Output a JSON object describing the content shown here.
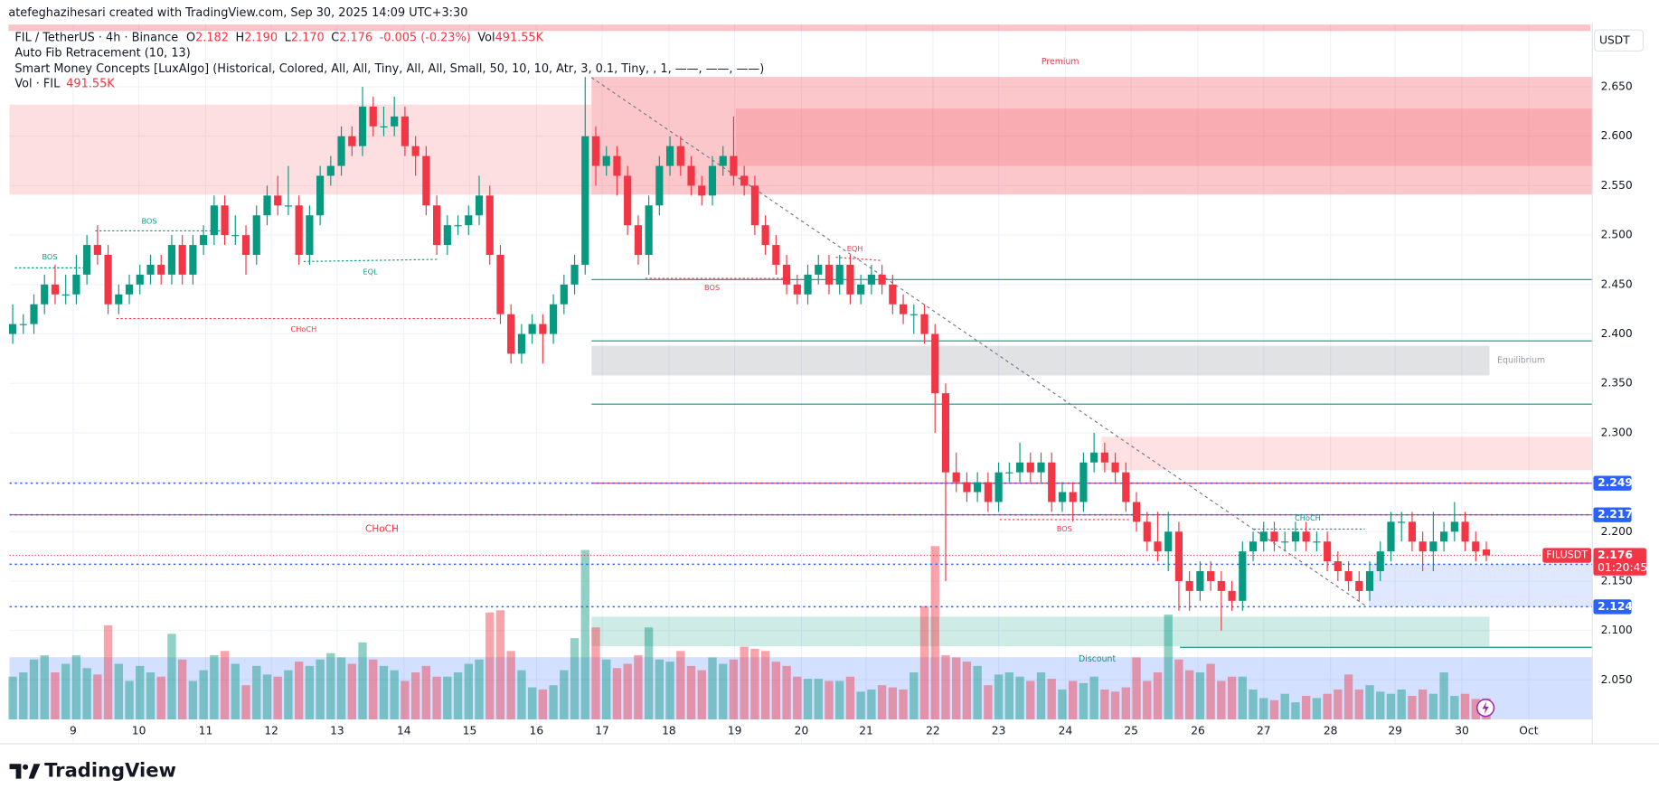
{
  "header": {
    "credit": "atefeghazihesari created with TradingView.com, Sep 30, 2025 14:09 UTC+3:30",
    "symbol": "FIL / TetherUS · 4h · Binance",
    "o_label": "O",
    "o": "2.182",
    "h_label": "H",
    "h": "2.190",
    "l_label": "L",
    "l": "2.170",
    "c_label": "C",
    "c": "2.176",
    "change": "-0.005 (-0.23%)",
    "vol_label": "Vol",
    "vol": "491.55K",
    "indicator_1": "Auto Fib Retracement (10, 13)",
    "indicator_2": "Smart Money Concepts [LuxAlgo] (Historical, Colored, All, All, Tiny, All, All, Small, 50, 10, 10, Atr, 3, 0.1, Tiny, , 1, ——, ——, ——)",
    "indicator_3": "Vol · FIL",
    "indicator_3_value": "491.55K",
    "currency": "USDT",
    "brand": "TradingView"
  },
  "chart_data": {
    "type": "candlestick",
    "up_color": "#089981",
    "down_color": "#f23645",
    "grid": true,
    "xlim": [
      -0.3,
      149
    ],
    "ylim": [
      2.01,
      2.714
    ],
    "volume_lim": [
      0,
      4200
    ],
    "yticks": [
      {
        "value": 2.05,
        "label": "2.050"
      },
      {
        "value": 2.1,
        "label": "2.100"
      },
      {
        "value": 2.15,
        "label": "2.150"
      },
      {
        "value": 2.2,
        "label": "2.200"
      },
      {
        "value": 2.25,
        "label": "2.250"
      },
      {
        "value": 2.3,
        "label": "2.300"
      },
      {
        "value": 2.35,
        "label": "2.350"
      },
      {
        "value": 2.4,
        "label": "2.400"
      },
      {
        "value": 2.45,
        "label": "2.450"
      },
      {
        "value": 2.5,
        "label": "2.500"
      },
      {
        "value": 2.55,
        "label": "2.550"
      },
      {
        "value": 2.6,
        "label": "2.600"
      },
      {
        "value": 2.65,
        "label": "2.650"
      }
    ],
    "xticks": [
      {
        "value": 5.7,
        "label": "9"
      },
      {
        "value": 11.9,
        "label": "10"
      },
      {
        "value": 18.2,
        "label": "11"
      },
      {
        "value": 24.4,
        "label": "12"
      },
      {
        "value": 30.6,
        "label": "13"
      },
      {
        "value": 36.9,
        "label": "14"
      },
      {
        "value": 43.1,
        "label": "15"
      },
      {
        "value": 49.4,
        "label": "16"
      },
      {
        "value": 55.6,
        "label": "17"
      },
      {
        "value": 61.9,
        "label": "18"
      },
      {
        "value": 68.1,
        "label": "19"
      },
      {
        "value": 74.4,
        "label": "20"
      },
      {
        "value": 80.5,
        "label": "21"
      },
      {
        "value": 86.8,
        "label": "22"
      },
      {
        "value": 93.0,
        "label": "23"
      },
      {
        "value": 99.3,
        "label": "24"
      },
      {
        "value": 105.5,
        "label": "25"
      },
      {
        "value": 111.8,
        "label": "26"
      },
      {
        "value": 118.0,
        "label": "27"
      },
      {
        "value": 124.3,
        "label": "28"
      },
      {
        "value": 130.4,
        "label": "29"
      },
      {
        "value": 136.7,
        "label": "30"
      },
      {
        "value": 143.0,
        "label": "Oct"
      }
    ],
    "candles": [
      [
        2.4,
        2.43,
        2.39,
        2.41
      ],
      [
        2.41,
        2.42,
        2.4,
        2.41
      ],
      [
        2.41,
        2.44,
        2.4,
        2.43
      ],
      [
        2.43,
        2.46,
        2.42,
        2.45
      ],
      [
        2.45,
        2.47,
        2.43,
        2.44
      ],
      [
        2.44,
        2.46,
        2.43,
        2.44
      ],
      [
        2.44,
        2.48,
        2.43,
        2.46
      ],
      [
        2.46,
        2.5,
        2.45,
        2.49
      ],
      [
        2.49,
        2.51,
        2.47,
        2.48
      ],
      [
        2.48,
        2.49,
        2.42,
        2.43
      ],
      [
        2.43,
        2.45,
        2.42,
        2.44
      ],
      [
        2.44,
        2.46,
        2.43,
        2.45
      ],
      [
        2.45,
        2.47,
        2.44,
        2.46
      ],
      [
        2.46,
        2.48,
        2.45,
        2.47
      ],
      [
        2.47,
        2.48,
        2.45,
        2.46
      ],
      [
        2.46,
        2.5,
        2.45,
        2.49
      ],
      [
        2.49,
        2.5,
        2.45,
        2.46
      ],
      [
        2.46,
        2.5,
        2.45,
        2.49
      ],
      [
        2.49,
        2.51,
        2.48,
        2.5
      ],
      [
        2.5,
        2.54,
        2.49,
        2.53
      ],
      [
        2.53,
        2.54,
        2.49,
        2.5
      ],
      [
        2.5,
        2.52,
        2.49,
        2.5
      ],
      [
        2.5,
        2.51,
        2.46,
        2.48
      ],
      [
        2.48,
        2.53,
        2.47,
        2.52
      ],
      [
        2.52,
        2.55,
        2.51,
        2.54
      ],
      [
        2.54,
        2.56,
        2.52,
        2.53
      ],
      [
        2.53,
        2.57,
        2.52,
        2.53
      ],
      [
        2.53,
        2.54,
        2.47,
        2.48
      ],
      [
        2.48,
        2.53,
        2.47,
        2.52
      ],
      [
        2.52,
        2.57,
        2.51,
        2.56
      ],
      [
        2.56,
        2.58,
        2.55,
        2.57
      ],
      [
        2.57,
        2.61,
        2.56,
        2.6
      ],
      [
        2.6,
        2.61,
        2.58,
        2.59
      ],
      [
        2.59,
        2.65,
        2.58,
        2.63
      ],
      [
        2.63,
        2.64,
        2.6,
        2.61
      ],
      [
        2.61,
        2.63,
        2.6,
        2.61
      ],
      [
        2.61,
        2.64,
        2.6,
        2.62
      ],
      [
        2.62,
        2.63,
        2.58,
        2.59
      ],
      [
        2.59,
        2.6,
        2.56,
        2.58
      ],
      [
        2.58,
        2.59,
        2.52,
        2.53
      ],
      [
        2.53,
        2.54,
        2.48,
        2.49
      ],
      [
        2.49,
        2.52,
        2.48,
        2.51
      ],
      [
        2.51,
        2.52,
        2.5,
        2.51
      ],
      [
        2.51,
        2.53,
        2.5,
        2.52
      ],
      [
        2.52,
        2.56,
        2.51,
        2.54
      ],
      [
        2.54,
        2.55,
        2.47,
        2.48
      ],
      [
        2.48,
        2.49,
        2.41,
        2.42
      ],
      [
        2.42,
        2.43,
        2.37,
        2.38
      ],
      [
        2.38,
        2.41,
        2.37,
        2.4
      ],
      [
        2.4,
        2.42,
        2.39,
        2.41
      ],
      [
        2.41,
        2.42,
        2.37,
        2.4
      ],
      [
        2.4,
        2.44,
        2.39,
        2.43
      ],
      [
        2.43,
        2.46,
        2.42,
        2.45
      ],
      [
        2.45,
        2.48,
        2.44,
        2.47
      ],
      [
        2.47,
        2.66,
        2.46,
        2.6
      ],
      [
        2.6,
        2.61,
        2.55,
        2.57
      ],
      [
        2.57,
        2.59,
        2.56,
        2.58
      ],
      [
        2.58,
        2.59,
        2.54,
        2.56
      ],
      [
        2.56,
        2.57,
        2.5,
        2.51
      ],
      [
        2.51,
        2.52,
        2.47,
        2.48
      ],
      [
        2.48,
        2.54,
        2.46,
        2.53
      ],
      [
        2.53,
        2.58,
        2.52,
        2.57
      ],
      [
        2.57,
        2.6,
        2.56,
        2.59
      ],
      [
        2.59,
        2.6,
        2.56,
        2.57
      ],
      [
        2.57,
        2.58,
        2.54,
        2.55
      ],
      [
        2.55,
        2.56,
        2.53,
        2.54
      ],
      [
        2.54,
        2.58,
        2.53,
        2.57
      ],
      [
        2.57,
        2.59,
        2.56,
        2.58
      ],
      [
        2.58,
        2.62,
        2.55,
        2.56
      ],
      [
        2.56,
        2.57,
        2.54,
        2.55
      ],
      [
        2.55,
        2.56,
        2.5,
        2.51
      ],
      [
        2.51,
        2.52,
        2.48,
        2.49
      ],
      [
        2.49,
        2.5,
        2.46,
        2.47
      ],
      [
        2.47,
        2.48,
        2.44,
        2.45
      ],
      [
        2.45,
        2.46,
        2.43,
        2.44
      ],
      [
        2.44,
        2.47,
        2.43,
        2.46
      ],
      [
        2.46,
        2.48,
        2.45,
        2.47
      ],
      [
        2.47,
        2.48,
        2.44,
        2.45
      ],
      [
        2.45,
        2.48,
        2.44,
        2.47
      ],
      [
        2.47,
        2.48,
        2.43,
        2.44
      ],
      [
        2.44,
        2.46,
        2.43,
        2.45
      ],
      [
        2.45,
        2.47,
        2.44,
        2.46
      ],
      [
        2.46,
        2.47,
        2.44,
        2.45
      ],
      [
        2.45,
        2.46,
        2.42,
        2.43
      ],
      [
        2.43,
        2.44,
        2.41,
        2.42
      ],
      [
        2.42,
        2.43,
        2.4,
        2.42
      ],
      [
        2.42,
        2.43,
        2.39,
        2.4
      ],
      [
        2.4,
        2.41,
        2.3,
        2.34
      ],
      [
        2.34,
        2.35,
        2.15,
        2.26
      ],
      [
        2.26,
        2.28,
        2.24,
        2.25
      ],
      [
        2.25,
        2.26,
        2.23,
        2.24
      ],
      [
        2.24,
        2.26,
        2.23,
        2.25
      ],
      [
        2.25,
        2.26,
        2.22,
        2.23
      ],
      [
        2.23,
        2.27,
        2.22,
        2.26
      ],
      [
        2.26,
        2.27,
        2.25,
        2.26
      ],
      [
        2.26,
        2.29,
        2.25,
        2.27
      ],
      [
        2.27,
        2.28,
        2.25,
        2.26
      ],
      [
        2.26,
        2.28,
        2.25,
        2.27
      ],
      [
        2.27,
        2.28,
        2.22,
        2.23
      ],
      [
        2.23,
        2.25,
        2.22,
        2.24
      ],
      [
        2.24,
        2.25,
        2.21,
        2.23
      ],
      [
        2.23,
        2.28,
        2.22,
        2.27
      ],
      [
        2.27,
        2.3,
        2.26,
        2.28
      ],
      [
        2.28,
        2.29,
        2.26,
        2.27
      ],
      [
        2.27,
        2.28,
        2.25,
        2.26
      ],
      [
        2.26,
        2.27,
        2.22,
        2.23
      ],
      [
        2.23,
        2.24,
        2.2,
        2.21
      ],
      [
        2.21,
        2.22,
        2.18,
        2.19
      ],
      [
        2.19,
        2.22,
        2.17,
        2.18
      ],
      [
        2.18,
        2.22,
        2.16,
        2.2
      ],
      [
        2.2,
        2.21,
        2.12,
        2.15
      ],
      [
        2.15,
        2.16,
        2.12,
        2.14
      ],
      [
        2.14,
        2.17,
        2.13,
        2.16
      ],
      [
        2.16,
        2.17,
        2.14,
        2.15
      ],
      [
        2.15,
        2.16,
        2.1,
        2.14
      ],
      [
        2.14,
        2.15,
        2.12,
        2.13
      ],
      [
        2.13,
        2.19,
        2.12,
        2.18
      ],
      [
        2.18,
        2.2,
        2.17,
        2.19
      ],
      [
        2.19,
        2.21,
        2.18,
        2.2
      ],
      [
        2.2,
        2.21,
        2.18,
        2.19
      ],
      [
        2.19,
        2.2,
        2.18,
        2.19
      ],
      [
        2.19,
        2.21,
        2.18,
        2.2
      ],
      [
        2.2,
        2.21,
        2.18,
        2.19
      ],
      [
        2.19,
        2.2,
        2.18,
        2.19
      ],
      [
        2.19,
        2.2,
        2.16,
        2.17
      ],
      [
        2.17,
        2.18,
        2.15,
        2.16
      ],
      [
        2.16,
        2.17,
        2.14,
        2.15
      ],
      [
        2.15,
        2.16,
        2.13,
        2.14
      ],
      [
        2.14,
        2.17,
        2.13,
        2.16
      ],
      [
        2.16,
        2.19,
        2.15,
        2.18
      ],
      [
        2.18,
        2.22,
        2.17,
        2.21
      ],
      [
        2.21,
        2.22,
        2.19,
        2.21
      ],
      [
        2.21,
        2.22,
        2.18,
        2.19
      ],
      [
        2.19,
        2.2,
        2.16,
        2.18
      ],
      [
        2.18,
        2.22,
        2.16,
        2.19
      ],
      [
        2.19,
        2.21,
        2.18,
        2.2
      ],
      [
        2.2,
        2.23,
        2.19,
        2.21
      ],
      [
        2.21,
        2.22,
        2.18,
        2.19
      ],
      [
        2.19,
        2.2,
        2.17,
        2.18
      ],
      [
        2.182,
        2.19,
        2.17,
        2.176
      ]
    ],
    "volume": [
      1000,
      1100,
      1400,
      1500,
      1100,
      1300,
      1500,
      1200,
      1050,
      2200,
      1300,
      900,
      1250,
      1100,
      1000,
      2000,
      1400,
      900,
      1150,
      1500,
      1600,
      1300,
      800,
      1250,
      1050,
      1000,
      1150,
      1350,
      1250,
      1400,
      1550,
      1450,
      1300,
      1800,
      1400,
      1250,
      1150,
      900,
      1100,
      1250,
      1000,
      1000,
      1100,
      1300,
      1400,
      2500,
      2550,
      1600,
      1150,
      750,
      700,
      800,
      1150,
      1900,
      3960,
      2150,
      1400,
      1200,
      1300,
      1500,
      2150,
      1400,
      1350,
      1600,
      1250,
      1150,
      1450,
      1300,
      1400,
      1700,
      1650,
      1600,
      1350,
      1250,
      1000,
      950,
      950,
      900,
      900,
      1000,
      650,
      700,
      800,
      750,
      700,
      1100,
      2650,
      4050,
      1500,
      1450,
      1350,
      1250,
      800,
      1050,
      1100,
      1000,
      900,
      1100,
      950,
      700,
      900,
      850,
      1000,
      700,
      650,
      750,
      1450,
      900,
      1100,
      2450,
      1400,
      1150,
      1100,
      1300,
      900,
      1000,
      1000,
      700,
      500,
      450,
      600,
      400,
      550,
      500,
      600,
      700,
      1050,
      700,
      800,
      650,
      600,
      700,
      550,
      700,
      600,
      1100,
      550,
      600,
      480,
      491.55
    ],
    "zones": [
      {
        "label": "Premium",
        "low": 2.541,
        "high": 2.66,
        "from": 54.6,
        "to": 149,
        "color": "rgba(242,54,69,0.28)"
      },
      {
        "low": 2.57,
        "high": 2.628,
        "from": 68.2,
        "to": 149,
        "color": "rgba(242,54,69,0.18)"
      },
      {
        "low": 2.541,
        "high": 2.632,
        "from": -0.3,
        "to": 54.6,
        "color": "rgba(242,54,69,0.16)"
      },
      {
        "label": "Equilibrium",
        "low": 2.358,
        "high": 2.388,
        "from": 54.6,
        "to": 139.3,
        "color": "rgba(120,123,134,0.22)"
      },
      {
        "low": 2.262,
        "high": 2.296,
        "from": 102.7,
        "to": 149,
        "color": "rgba(242,54,69,0.15)"
      },
      {
        "low": 2.124,
        "high": 2.167,
        "from": 127.9,
        "to": 149,
        "color": "rgba(41,98,255,0.15)"
      },
      {
        "low": 2.084,
        "high": 2.114,
        "from": 54.6,
        "to": 139.3,
        "color": "rgba(8,153,129,0.2)"
      },
      {
        "label": "Discount",
        "low": 2.01,
        "high": 2.073,
        "from": -0.3,
        "to": 149,
        "color": "rgba(41,98,255,0.2)"
      }
    ],
    "lines": [
      {
        "price": 2.455,
        "from": 54.6,
        "color": "#089981"
      },
      {
        "price": 2.393,
        "from": 54.6,
        "color": "#089981"
      },
      {
        "price": 2.329,
        "from": 54.6,
        "color": "#089981"
      },
      {
        "price": 2.249,
        "from": 54.6,
        "color": "#f23645"
      },
      {
        "price": 2.217,
        "from": -0.3,
        "color": "#f23645"
      },
      {
        "price": 2.083,
        "from": 110.1,
        "color": "#089981"
      }
    ],
    "levels": [
      {
        "price": 2.249,
        "color": "#2962ff"
      },
      {
        "price": 2.217,
        "color": "#2962ff"
      },
      {
        "price": 2.167,
        "color": "#2962ff"
      },
      {
        "price": 2.124,
        "color": "#2962ff"
      }
    ],
    "last_price": {
      "value": 2.176,
      "symbol": "FILUSDT",
      "countdown": "01:20:45",
      "color": "#f23645"
    },
    "annotations": [
      "BOS",
      "BOS",
      "EQL",
      "CHoCH",
      "BOS",
      "EQH",
      "CHoCH",
      "BOS",
      "CHoCH"
    ]
  }
}
